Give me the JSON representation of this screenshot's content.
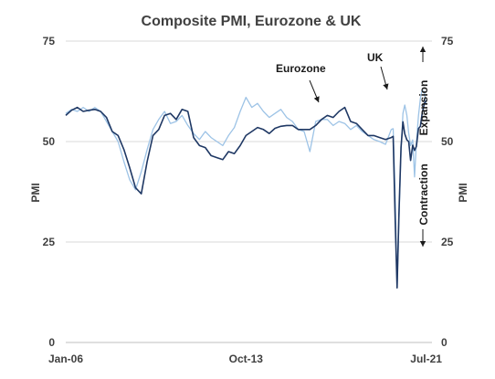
{
  "chart_data": {
    "type": "line",
    "title": "Composite PMI, Eurozone & UK",
    "ylabel_left": "PMI",
    "ylabel_right": "PMI",
    "yticks": [
      0,
      25,
      50,
      75
    ],
    "ylim": [
      0,
      75
    ],
    "xlim": [
      2006.0,
      2021.75
    ],
    "xtick_labels": [
      {
        "x": 2006.0,
        "label": "Jan-06"
      },
      {
        "x": 2013.75,
        "label": "Oct-13"
      },
      {
        "x": 2021.5,
        "label": "Jul-21"
      }
    ],
    "grid": true,
    "annotations": [
      {
        "text": "Eurozone",
        "series": "Eurozone"
      },
      {
        "text": "UK",
        "series": "UK"
      },
      {
        "text": "Expansion",
        "direction": "up"
      },
      {
        "text": "Contraction",
        "direction": "down"
      }
    ],
    "colors": {
      "eurozone": "#1f3864",
      "uk": "#9dc3e6",
      "text": "#404040",
      "grid": "#d9d9d9"
    },
    "series": [
      {
        "name": "Eurozone",
        "x": [
          2006.0,
          2006.25,
          2006.5,
          2006.75,
          2007.0,
          2007.25,
          2007.5,
          2007.75,
          2008.0,
          2008.25,
          2008.5,
          2008.75,
          2009.0,
          2009.25,
          2009.5,
          2009.75,
          2010.0,
          2010.25,
          2010.5,
          2010.75,
          2011.0,
          2011.25,
          2011.5,
          2011.75,
          2012.0,
          2012.25,
          2012.5,
          2012.75,
          2013.0,
          2013.25,
          2013.5,
          2013.75,
          2014.0,
          2014.25,
          2014.5,
          2014.75,
          2015.0,
          2015.25,
          2015.5,
          2015.75,
          2016.0,
          2016.25,
          2016.5,
          2016.75,
          2017.0,
          2017.25,
          2017.5,
          2017.75,
          2018.0,
          2018.25,
          2018.5,
          2018.75,
          2019.0,
          2019.25,
          2019.5,
          2019.75,
          2020.0,
          2020.08,
          2020.17,
          2020.25,
          2020.33,
          2020.42,
          2020.5,
          2020.58,
          2020.67,
          2020.75,
          2020.83,
          2020.92,
          2021.0,
          2021.08,
          2021.17,
          2021.25,
          2021.33,
          2021.42,
          2021.5
        ],
        "values": [
          56.5,
          57.8,
          58.5,
          57.5,
          57.8,
          58.0,
          57.5,
          56.0,
          52.5,
          51.5,
          48.0,
          43.5,
          38.5,
          37.0,
          45.0,
          51.5,
          53.0,
          56.5,
          57.0,
          55.5,
          58.0,
          57.5,
          51.0,
          49.0,
          48.5,
          46.5,
          46.0,
          45.5,
          47.5,
          47.0,
          49.0,
          51.5,
          52.5,
          53.5,
          53.0,
          52.0,
          53.3,
          53.8,
          54.0,
          54.0,
          53.0,
          53.0,
          53.0,
          54.0,
          55.5,
          56.5,
          56.0,
          57.5,
          58.5,
          55.0,
          54.5,
          53.0,
          51.5,
          51.5,
          51.0,
          50.5,
          51.0,
          51.3,
          29.7,
          13.6,
          31.9,
          48.5,
          54.9,
          51.9,
          50.4,
          50.0,
          45.3,
          49.1,
          47.8,
          48.8,
          53.2,
          53.8,
          57.1,
          59.5,
          60.2
        ]
      },
      {
        "name": "UK",
        "x": [
          2006.0,
          2006.25,
          2006.5,
          2006.75,
          2007.0,
          2007.25,
          2007.5,
          2007.75,
          2008.0,
          2008.25,
          2008.5,
          2008.75,
          2009.0,
          2009.25,
          2009.5,
          2009.75,
          2010.0,
          2010.25,
          2010.5,
          2010.75,
          2011.0,
          2011.25,
          2011.5,
          2011.75,
          2012.0,
          2012.25,
          2012.5,
          2012.75,
          2013.0,
          2013.25,
          2013.5,
          2013.75,
          2014.0,
          2014.25,
          2014.5,
          2014.75,
          2015.0,
          2015.25,
          2015.5,
          2015.75,
          2016.0,
          2016.25,
          2016.5,
          2016.75,
          2017.0,
          2017.25,
          2017.5,
          2017.75,
          2018.0,
          2018.25,
          2018.5,
          2018.75,
          2019.0,
          2019.25,
          2019.5,
          2019.75,
          2020.0,
          2020.08,
          2020.17,
          2020.25,
          2020.33,
          2020.42,
          2020.5,
          2020.58,
          2020.67,
          2020.75,
          2020.83,
          2020.92,
          2021.0,
          2021.08,
          2021.17,
          2021.25,
          2021.33,
          2021.42,
          2021.5
        ],
        "values": [
          57.0,
          58.0,
          57.5,
          58.5,
          57.5,
          58.5,
          57.5,
          55.0,
          52.5,
          50.0,
          45.0,
          40.5,
          38.0,
          42.5,
          48.0,
          53.0,
          55.5,
          57.5,
          54.5,
          55.0,
          56.5,
          54.0,
          52.0,
          50.5,
          52.5,
          51.0,
          50.0,
          49.0,
          51.5,
          53.5,
          57.5,
          61.0,
          58.5,
          59.5,
          57.5,
          56.0,
          57.0,
          58.0,
          56.0,
          55.0,
          53.0,
          52.5,
          47.5,
          55.0,
          55.5,
          55.5,
          54.0,
          55.0,
          54.5,
          53.0,
          54.0,
          52.5,
          51.5,
          50.5,
          50.0,
          49.3,
          53.0,
          53.2,
          36.0,
          13.8,
          30.0,
          47.7,
          57.0,
          59.1,
          56.5,
          52.1,
          49.0,
          50.4,
          41.2,
          49.6,
          56.4,
          60.7,
          62.9,
          62.2,
          59.2
        ]
      }
    ]
  }
}
